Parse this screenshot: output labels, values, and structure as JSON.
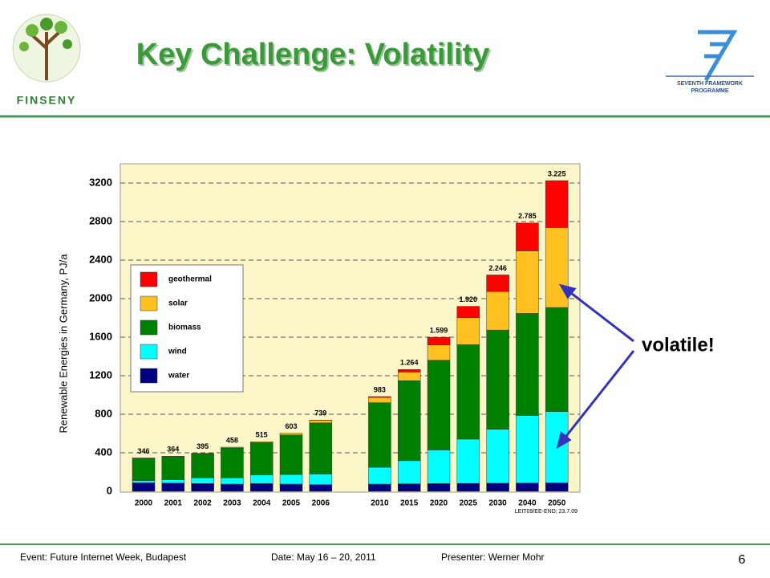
{
  "slide": {
    "title": "Key Challenge: Volatility",
    "logo_left": "FINSENY",
    "logo_right": [
      "SEVENTH FRAMEWORK",
      "PROGRAMME"
    ],
    "annotation": "volatile!",
    "footer": {
      "event": "Event: Future Internet Week, Budapest",
      "date": "Date: May 16 – 20, 2011",
      "presenter": "Presenter: Werner Mohr",
      "page": "6"
    }
  },
  "chart_data": {
    "type": "stacked-bar",
    "ylabel": "Renewable Energies in Germany, PJ/a",
    "source": "LEIT09/EE-END; 23.7.09",
    "categories": [
      "2000",
      "2001",
      "2002",
      "2003",
      "2004",
      "2005",
      "2006",
      "2010",
      "2015",
      "2020",
      "2025",
      "2030",
      "2040",
      "2050"
    ],
    "series": [
      {
        "name": "water",
        "color": "#000080",
        "values": [
          90,
          85,
          80,
          75,
          80,
          75,
          70,
          75,
          78,
          80,
          82,
          84,
          86,
          88
        ]
      },
      {
        "name": "wind",
        "color": "#00ffff",
        "values": [
          22,
          35,
          60,
          65,
          90,
          100,
          110,
          175,
          240,
          350,
          460,
          560,
          700,
          740
        ]
      },
      {
        "name": "biomass",
        "color": "#008000",
        "values": [
          232,
          241,
          250,
          310,
          335,
          410,
          530,
          670,
          830,
          930,
          980,
          1030,
          1060,
          1080
        ]
      },
      {
        "name": "solar",
        "color": "#ffc020",
        "values": [
          2,
          3,
          5,
          8,
          10,
          18,
          28,
          55,
          90,
          160,
          280,
          400,
          650,
          830
        ]
      },
      {
        "name": "geothermal",
        "color": "#ff0000",
        "values": [
          0,
          0,
          0,
          0,
          0,
          0,
          1,
          8,
          26,
          79,
          118,
          172,
          289,
          487
        ]
      }
    ],
    "totals": {
      "values": [
        346,
        364,
        395,
        458,
        515,
        603,
        739,
        983,
        1264,
        1599,
        1920,
        2246,
        2785,
        3225
      ],
      "value_labels": [
        "346",
        "364",
        "395",
        "458",
        "515",
        "603",
        "739",
        "983",
        "1.264",
        "1.599",
        "1.920",
        "2.246",
        "2.785",
        "3.225"
      ]
    },
    "ylim": [
      0,
      3400
    ],
    "yticks": [
      0,
      400,
      800,
      1200,
      1600,
      2000,
      2400,
      2800,
      3200
    ],
    "grid": true,
    "legend": "upper left"
  }
}
